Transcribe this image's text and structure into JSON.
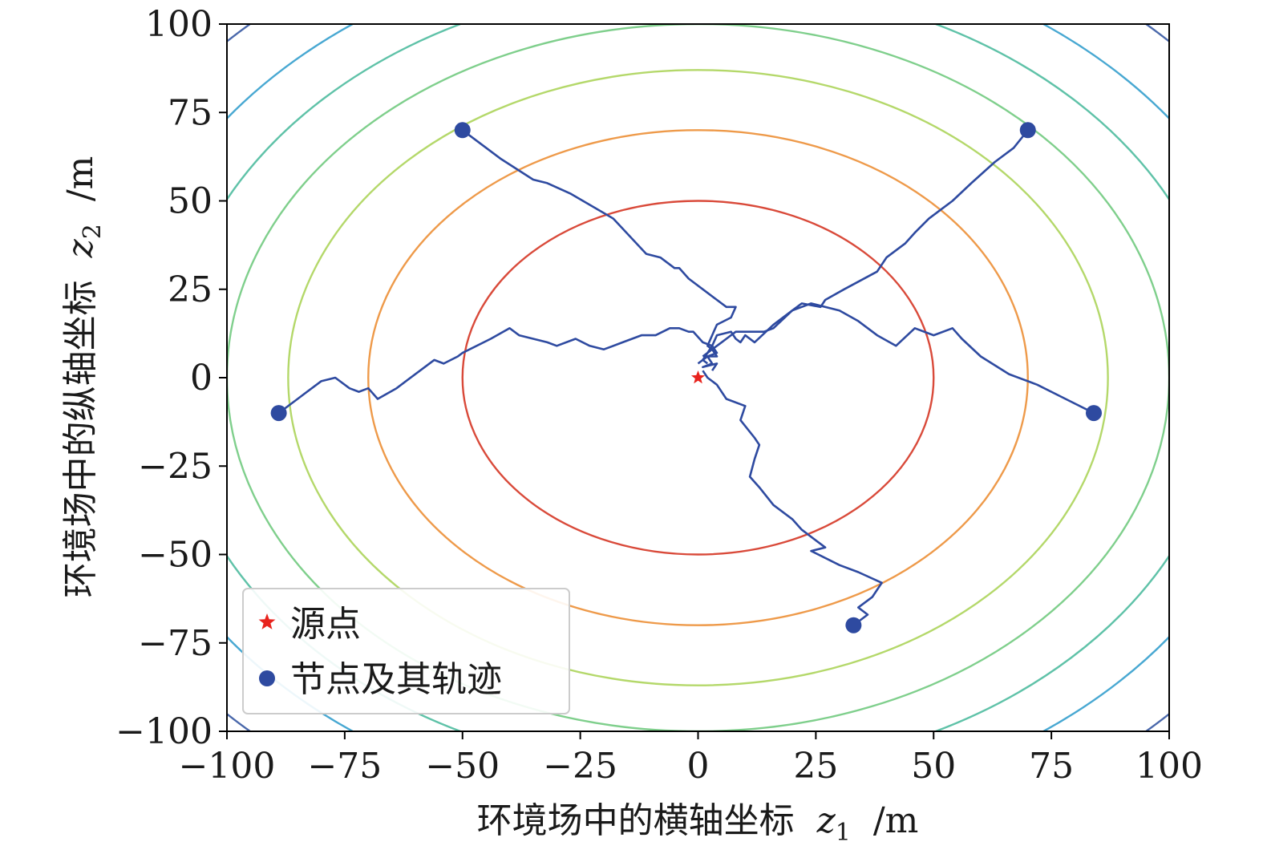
{
  "chart_data": {
    "type": "line",
    "xlabel": "环境场中的横轴坐标",
    "xlabel_var": "z",
    "xlabel_sub": "1",
    "xlabel_unit": "/m",
    "ylabel": "环境场中的纵轴坐标",
    "ylabel_var": "z",
    "ylabel_sub": "2",
    "ylabel_unit": "/m",
    "xlim": [
      -100,
      100
    ],
    "ylim": [
      -100,
      100
    ],
    "xticks": [
      -100,
      -75,
      -50,
      -25,
      0,
      25,
      50,
      75,
      100
    ],
    "yticks": [
      -100,
      -75,
      -50,
      -25,
      0,
      25,
      50,
      75,
      100
    ],
    "xtick_labels": [
      "−100",
      "−75",
      "−50",
      "−25",
      "0",
      "25",
      "50",
      "75",
      "100"
    ],
    "ytick_labels": [
      "−100",
      "−75",
      "−50",
      "−25",
      "0",
      "25",
      "50",
      "75",
      "100"
    ],
    "grid": false,
    "legend_position": "lower-left",
    "legend": [
      {
        "label": "源点",
        "marker": "star",
        "color": "#e8231d"
      },
      {
        "label": "节点及其轨迹",
        "marker": "circle",
        "color": "#2e4aa0"
      }
    ],
    "source": {
      "name": "源点",
      "x": 0,
      "y": 0,
      "color": "#e8231d"
    },
    "contours": [
      {
        "radius": 50,
        "color": "#d94a3a"
      },
      {
        "radius": 70,
        "color": "#ee9a4a"
      },
      {
        "radius": 87,
        "color": "#b4d86a"
      },
      {
        "radius": 100,
        "color": "#7fcf8c"
      },
      {
        "radius": 112,
        "color": "#5fc2a8"
      },
      {
        "radius": 124,
        "color": "#48a8d2"
      },
      {
        "radius": 138,
        "color": "#4a68ab"
      }
    ],
    "series": [
      {
        "color": "#2e4aa0",
        "start": [
          -50,
          70
        ],
        "points": [
          [
            -50,
            70
          ],
          [
            -42,
            62
          ],
          [
            -35,
            56
          ],
          [
            -32,
            55
          ],
          [
            -27,
            52
          ],
          [
            -18,
            45
          ],
          [
            -11,
            35
          ],
          [
            -8,
            34
          ],
          [
            -6,
            32
          ],
          [
            -5,
            31
          ],
          [
            -4,
            31
          ],
          [
            -2,
            28
          ],
          [
            2,
            24
          ],
          [
            6,
            20
          ],
          [
            8,
            20
          ],
          [
            7,
            17
          ],
          [
            4,
            15
          ],
          [
            3,
            12
          ],
          [
            2,
            9
          ],
          [
            3,
            8
          ],
          [
            4,
            6
          ],
          [
            2,
            6
          ],
          [
            3,
            4
          ],
          [
            1,
            3
          ],
          [
            4,
            4
          ],
          [
            3,
            2
          ]
        ]
      },
      {
        "color": "#2e4aa0",
        "start": [
          70,
          70
        ],
        "points": [
          [
            70,
            70
          ],
          [
            67,
            65
          ],
          [
            63,
            61
          ],
          [
            58,
            55
          ],
          [
            54,
            50
          ],
          [
            49,
            45
          ],
          [
            46,
            41
          ],
          [
            44,
            38
          ],
          [
            40,
            34
          ],
          [
            38,
            30
          ],
          [
            31,
            25
          ],
          [
            27,
            22
          ],
          [
            26,
            20
          ],
          [
            22,
            21
          ],
          [
            20,
            19
          ],
          [
            16,
            14
          ],
          [
            14,
            13
          ],
          [
            10,
            13
          ],
          [
            8,
            13
          ],
          [
            6,
            11
          ],
          [
            5,
            10
          ],
          [
            3,
            8
          ],
          [
            2,
            7
          ],
          [
            1,
            5
          ],
          [
            0,
            4
          ]
        ]
      },
      {
        "color": "#2e4aa0",
        "start": [
          -89,
          -10
        ],
        "points": [
          [
            -89,
            -10
          ],
          [
            -85,
            -6
          ],
          [
            -80,
            -1
          ],
          [
            -77,
            0
          ],
          [
            -74,
            -3
          ],
          [
            -72,
            -4
          ],
          [
            -70,
            -3
          ],
          [
            -68,
            -6
          ],
          [
            -64,
            -3
          ],
          [
            -56,
            5
          ],
          [
            -54,
            4
          ],
          [
            -51,
            6
          ],
          [
            -50,
            7
          ],
          [
            -44,
            11
          ],
          [
            -40,
            14
          ],
          [
            -38,
            12
          ],
          [
            -35,
            11
          ],
          [
            -32,
            10
          ],
          [
            -30,
            9
          ],
          [
            -26,
            11
          ],
          [
            -23,
            9
          ],
          [
            -20,
            8
          ],
          [
            -16,
            10
          ],
          [
            -12,
            12
          ],
          [
            -9,
            12
          ],
          [
            -6,
            14
          ],
          [
            -4,
            14
          ],
          [
            -2,
            13
          ],
          [
            -1,
            13
          ],
          [
            1,
            10
          ],
          [
            3,
            9
          ],
          [
            4,
            7
          ],
          [
            2,
            6
          ],
          [
            1,
            5
          ],
          [
            2,
            4
          ]
        ]
      },
      {
        "color": "#2e4aa0",
        "start": [
          84,
          -10
        ],
        "points": [
          [
            84,
            -10
          ],
          [
            78,
            -6
          ],
          [
            72,
            -2
          ],
          [
            70,
            -1
          ],
          [
            66,
            1
          ],
          [
            60,
            6
          ],
          [
            56,
            11
          ],
          [
            54,
            14
          ],
          [
            50,
            12
          ],
          [
            46,
            14
          ],
          [
            42,
            9
          ],
          [
            38,
            12
          ],
          [
            34,
            16
          ],
          [
            30,
            19
          ],
          [
            24,
            21
          ],
          [
            20,
            19
          ],
          [
            16,
            15
          ],
          [
            12,
            10
          ],
          [
            10,
            12
          ],
          [
            9,
            10
          ],
          [
            8,
            11
          ],
          [
            7,
            13
          ],
          [
            4,
            12
          ],
          [
            3,
            9
          ],
          [
            2,
            7
          ],
          [
            1,
            6
          ]
        ]
      },
      {
        "color": "#2e4aa0",
        "start": [
          33,
          -70
        ],
        "points": [
          [
            33,
            -70
          ],
          [
            36,
            -67
          ],
          [
            34,
            -65
          ],
          [
            37,
            -62
          ],
          [
            39,
            -58
          ],
          [
            34,
            -55
          ],
          [
            30,
            -53
          ],
          [
            24,
            -49
          ],
          [
            27,
            -48
          ],
          [
            22,
            -43
          ],
          [
            20,
            -40
          ],
          [
            16,
            -36
          ],
          [
            13,
            -31
          ],
          [
            11,
            -28
          ],
          [
            12,
            -23
          ],
          [
            13,
            -19
          ],
          [
            12,
            -17
          ],
          [
            9,
            -12
          ],
          [
            10,
            -8
          ],
          [
            6,
            -6
          ],
          [
            4,
            -2
          ],
          [
            2,
            0
          ],
          [
            1,
            2
          ]
        ]
      }
    ]
  }
}
